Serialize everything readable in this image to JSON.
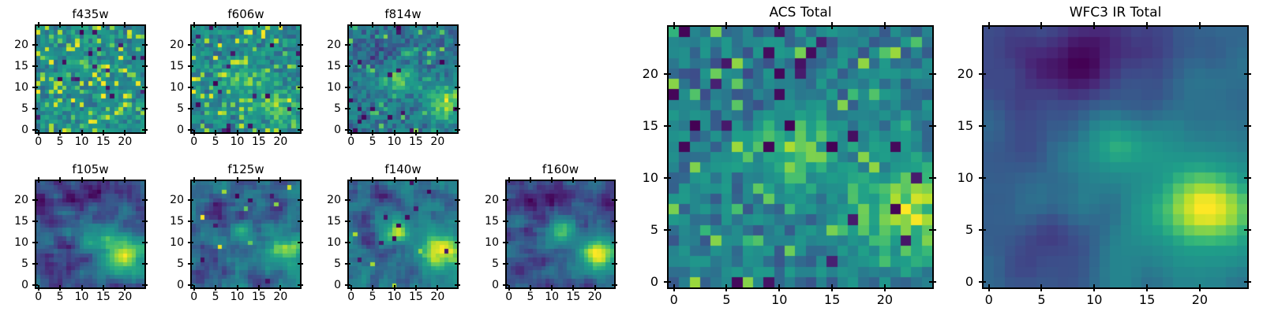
{
  "figure": {
    "background": "#ffffff",
    "description": "Grid of astronomical image cutouts in HST filters with two stacked totals"
  },
  "chart_data": {
    "type": "heatmap",
    "colormap": "viridis",
    "grid_size": 25,
    "x_ticks": [
      0,
      5,
      10,
      15,
      20
    ],
    "y_ticks": [
      0,
      5,
      10,
      15,
      20
    ],
    "x_range": [
      0,
      24
    ],
    "y_range": [
      0,
      24
    ],
    "grid": "off",
    "legend": "none",
    "viridis_stops": [
      [
        0.0,
        68,
        1,
        84
      ],
      [
        0.1,
        72,
        40,
        120
      ],
      [
        0.2,
        62,
        74,
        137
      ],
      [
        0.3,
        49,
        104,
        142
      ],
      [
        0.4,
        38,
        130,
        142
      ],
      [
        0.5,
        33,
        145,
        140
      ],
      [
        0.6,
        31,
        158,
        137
      ],
      [
        0.7,
        53,
        183,
        121
      ],
      [
        0.8,
        109,
        205,
        89
      ],
      [
        0.9,
        180,
        222,
        44
      ],
      [
        1.0,
        253,
        231,
        37
      ]
    ],
    "panels": [
      {
        "id": "f435w",
        "title": "f435w",
        "seed": 11,
        "base": 0.52,
        "noise": 0.2,
        "blur": 0,
        "pepper": 0.035,
        "salt": 0.13,
        "blobs": []
      },
      {
        "id": "f606w",
        "title": "f606w",
        "seed": 22,
        "base": 0.5,
        "noise": 0.2,
        "blur": 0,
        "pepper": 0.03,
        "salt": 0.09,
        "blobs": [
          [
            12,
            12,
            3,
            2,
            0.26
          ],
          [
            19,
            6,
            3.5,
            2.5,
            0.3
          ]
        ]
      },
      {
        "id": "f814w",
        "title": "f814w",
        "seed": 33,
        "base": 0.47,
        "noise": 0.18,
        "blur": 0,
        "pepper": 0.02,
        "salt": 0.05,
        "blobs": [
          [
            11,
            12,
            2.8,
            2.2,
            0.48
          ],
          [
            22,
            6.5,
            3.2,
            3,
            0.62
          ],
          [
            5,
            18,
            3,
            2,
            -0.15
          ]
        ]
      },
      {
        "id": "f105w",
        "title": "f105w",
        "seed": 44,
        "base": 0.36,
        "noise": 0.32,
        "blur": 1,
        "pepper": 0,
        "salt": 0,
        "blobs": [
          [
            20,
            7,
            4.5,
            3.5,
            0.62
          ],
          [
            13,
            12,
            3,
            2,
            0.26
          ],
          [
            8,
            20,
            2.5,
            2,
            -0.2
          ],
          [
            3,
            15,
            1.5,
            1.5,
            -0.18
          ],
          [
            12,
            22,
            4,
            1.5,
            -0.1
          ]
        ]
      },
      {
        "id": "f125w",
        "title": "f125w",
        "seed": 55,
        "base": 0.36,
        "noise": 0.36,
        "blur": 1,
        "pepper": 0.01,
        "salt": 0.01,
        "blobs": [
          [
            21,
            8,
            3,
            2.5,
            0.55
          ],
          [
            12,
            12.5,
            3,
            2,
            0.28
          ],
          [
            6,
            17,
            3,
            2.5,
            -0.2
          ],
          [
            2,
            3,
            2,
            2,
            -0.1
          ]
        ]
      },
      {
        "id": "f140w",
        "title": "f140w",
        "seed": 66,
        "base": 0.38,
        "noise": 0.34,
        "blur": 1,
        "pepper": 0.01,
        "salt": 0.01,
        "blobs": [
          [
            21,
            7.5,
            3.5,
            3,
            0.58
          ],
          [
            11,
            12.5,
            2.5,
            2,
            0.42
          ],
          [
            3,
            13,
            2,
            3,
            -0.22
          ],
          [
            8,
            21,
            3,
            1.5,
            -0.16
          ],
          [
            13,
            2,
            2,
            1.5,
            -0.18
          ]
        ]
      },
      {
        "id": "f160w",
        "title": "f160w",
        "seed": 77,
        "base": 0.34,
        "noise": 0.28,
        "blur": 1,
        "pepper": 0,
        "salt": 0,
        "blobs": [
          [
            20.5,
            7,
            3.5,
            3,
            0.66
          ],
          [
            12,
            13,
            2.2,
            1.8,
            0.5
          ],
          [
            7,
            20,
            2.5,
            2,
            -0.15
          ],
          [
            3,
            3,
            2,
            2,
            -0.12
          ]
        ]
      },
      {
        "id": "acs-total",
        "title": "ACS Total",
        "seed": 88,
        "base": 0.5,
        "noise": 0.2,
        "blur": 0,
        "pepper": 0.03,
        "salt": 0.07,
        "blobs": [
          [
            11.5,
            12.5,
            2.8,
            2.2,
            0.45
          ],
          [
            22,
            6.5,
            3.5,
            3,
            0.55
          ],
          [
            5,
            18,
            3,
            2,
            -0.1
          ]
        ]
      },
      {
        "id": "wfc3-ir-total",
        "title": "WFC3 IR Total",
        "seed": 99,
        "base": 0.34,
        "noise": 0.26,
        "blur": 2,
        "pepper": 0,
        "salt": 0,
        "blobs": [
          [
            21,
            7,
            3.5,
            3,
            0.72
          ],
          [
            12,
            13,
            2.2,
            1.8,
            0.42
          ],
          [
            19,
            9,
            7,
            7,
            0.15
          ],
          [
            9,
            20,
            3,
            2.5,
            -0.28
          ],
          [
            7,
            4,
            2.5,
            2,
            -0.15
          ],
          [
            3,
            1,
            1.5,
            1.5,
            -0.12
          ],
          [
            6,
            18,
            6,
            5,
            -0.1
          ],
          [
            12,
            23,
            6,
            2,
            -0.1
          ]
        ]
      }
    ],
    "notes": "Bright source at approx (x=21,y=7) and secondary at (x=12,y=13); ACS filters are noisy, WFC3 IR filters are smooth with dark patch near (x=9,y=20)."
  }
}
